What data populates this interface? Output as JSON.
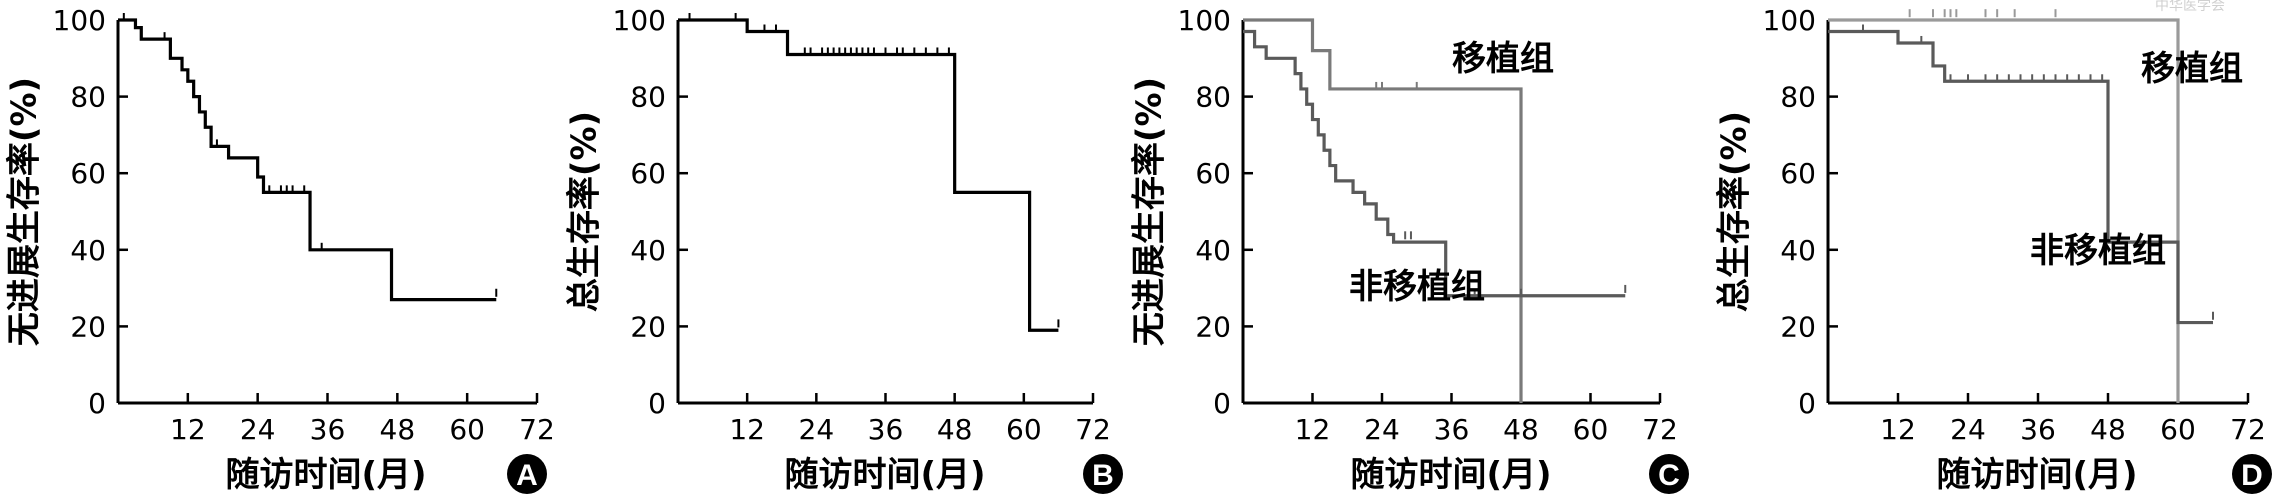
{
  "chart_data": [
    {
      "panel": "A",
      "type": "line",
      "ylabel": "无进展生存率(%)",
      "xlabel": "随访时间(月)",
      "xlim": [
        0,
        72
      ],
      "ylim": [
        0,
        100
      ],
      "x_ticks": [
        "12",
        "24",
        "36",
        "48",
        "60",
        "72"
      ],
      "y_ticks": [
        "0",
        "20",
        "40",
        "60",
        "80",
        "100"
      ],
      "grid": false,
      "series": [
        {
          "color": "#000000",
          "steps": [
            [
              0,
              100
            ],
            [
              3,
              98
            ],
            [
              4,
              95
            ],
            [
              9,
              90
            ],
            [
              11,
              87
            ],
            [
              12,
              84
            ],
            [
              13,
              80
            ],
            [
              14,
              76
            ],
            [
              15,
              72
            ],
            [
              16,
              67
            ],
            [
              19,
              64
            ],
            [
              24,
              59
            ],
            [
              25,
              55
            ],
            [
              33,
              40
            ],
            [
              47,
              27
            ],
            [
              65,
              27
            ]
          ],
          "end": 65,
          "censors": [
            [
              1,
              100
            ],
            [
              8,
              95
            ],
            [
              17,
              67
            ],
            [
              26,
              55
            ],
            [
              28,
              55
            ],
            [
              29,
              55
            ],
            [
              30,
              55
            ],
            [
              32,
              55
            ],
            [
              35,
              40
            ],
            [
              65,
              28
            ]
          ]
        }
      ]
    },
    {
      "panel": "B",
      "type": "line",
      "ylabel": "总生存率(%)",
      "xlabel": "随访时间(月)",
      "xlim": [
        0,
        72
      ],
      "ylim": [
        0,
        100
      ],
      "x_ticks": [
        "12",
        "24",
        "36",
        "48",
        "60",
        "72"
      ],
      "y_ticks": [
        "0",
        "20",
        "40",
        "60",
        "80",
        "100"
      ],
      "grid": false,
      "series": [
        {
          "color": "#000000",
          "steps": [
            [
              0,
              100
            ],
            [
              12,
              97
            ],
            [
              19,
              91
            ],
            [
              48,
              55
            ],
            [
              61,
              19
            ],
            [
              66,
              19
            ]
          ],
          "end": 66,
          "censors": [
            [
              2,
              100
            ],
            [
              10,
              100
            ],
            [
              15,
              97
            ],
            [
              17,
              97
            ],
            [
              22,
              91
            ],
            [
              23,
              91
            ],
            [
              25,
              91
            ],
            [
              26,
              91
            ],
            [
              27,
              91
            ],
            [
              28,
              91
            ],
            [
              29,
              91
            ],
            [
              30,
              91
            ],
            [
              31,
              91
            ],
            [
              32,
              91
            ],
            [
              33,
              91
            ],
            [
              34,
              91
            ],
            [
              36,
              91
            ],
            [
              38,
              91
            ],
            [
              39,
              91
            ],
            [
              41,
              91
            ],
            [
              43,
              91
            ],
            [
              45,
              91
            ],
            [
              47,
              91
            ],
            [
              66,
              20
            ]
          ]
        }
      ]
    },
    {
      "panel": "C",
      "type": "line",
      "ylabel": "无进展生存率(%)",
      "xlabel": "随访时间(月)",
      "xlim": [
        0,
        72
      ],
      "ylim": [
        0,
        100
      ],
      "x_ticks": [
        "12",
        "24",
        "36",
        "48",
        "60",
        "72"
      ],
      "y_ticks": [
        "0",
        "20",
        "40",
        "60",
        "80",
        "100"
      ],
      "grid": false,
      "series": [
        {
          "name": "移植组",
          "color": "#7a7a7a",
          "steps": [
            [
              0,
              100
            ],
            [
              12,
              92
            ],
            [
              15,
              82
            ],
            [
              48,
              0
            ]
          ],
          "end": 48,
          "censors": [
            [
              23,
              82
            ],
            [
              24,
              82
            ],
            [
              30,
              82
            ]
          ]
        },
        {
          "name": "非移植组",
          "color": "#5a5a5a",
          "steps": [
            [
              0,
              97
            ],
            [
              2,
              93
            ],
            [
              4,
              90
            ],
            [
              9,
              86
            ],
            [
              10,
              82
            ],
            [
              11,
              78
            ],
            [
              12,
              74
            ],
            [
              13,
              70
            ],
            [
              14,
              66
            ],
            [
              15,
              62
            ],
            [
              16,
              58
            ],
            [
              19,
              55
            ],
            [
              21,
              52
            ],
            [
              23,
              48
            ],
            [
              25,
              44
            ],
            [
              26,
              42
            ],
            [
              35,
              28
            ],
            [
              66,
              28
            ]
          ],
          "end": 66,
          "censors": [
            [
              28,
              43
            ],
            [
              29,
              43
            ],
            [
              40,
              28
            ],
            [
              48,
              28
            ],
            [
              66,
              29
            ]
          ]
        }
      ]
    },
    {
      "panel": "D",
      "type": "line",
      "ylabel": "总生存率(%)",
      "xlabel": "随访时间(月)",
      "xlim": [
        0,
        72
      ],
      "ylim": [
        0,
        100
      ],
      "x_ticks": [
        "12",
        "24",
        "36",
        "48",
        "60",
        "72"
      ],
      "y_ticks": [
        "0",
        "20",
        "40",
        "60",
        "80",
        "100"
      ],
      "grid": false,
      "series": [
        {
          "name": "移植组",
          "color": "#9a9a9a",
          "steps": [
            [
              0,
              100
            ],
            [
              60,
              0
            ]
          ],
          "end": 60,
          "censors": [
            [
              14,
              101
            ],
            [
              18,
              101
            ],
            [
              20,
              101
            ],
            [
              21,
              101
            ],
            [
              22,
              101
            ],
            [
              27,
              101
            ],
            [
              29,
              101
            ],
            [
              32,
              101
            ],
            [
              39,
              101
            ]
          ]
        },
        {
          "name": "非移植组",
          "color": "#5a5a5a",
          "steps": [
            [
              0,
              97
            ],
            [
              12,
              94
            ],
            [
              18,
              88
            ],
            [
              20,
              84
            ],
            [
              48,
              42
            ],
            [
              60,
              21
            ],
            [
              66,
              21
            ]
          ],
          "end": 66,
          "censors": [
            [
              6,
              97
            ],
            [
              16,
              94
            ],
            [
              21,
              84
            ],
            [
              24,
              84
            ],
            [
              27,
              84
            ],
            [
              29,
              84
            ],
            [
              31,
              84
            ],
            [
              33,
              84
            ],
            [
              35,
              84
            ],
            [
              37,
              84
            ],
            [
              39,
              84
            ],
            [
              41,
              84
            ],
            [
              43,
              84
            ],
            [
              45,
              84
            ],
            [
              47,
              84
            ],
            [
              66,
              22
            ]
          ]
        }
      ]
    }
  ],
  "figure": {
    "badges": [
      "A",
      "B",
      "C",
      "D"
    ],
    "watermark": "中华医学会"
  }
}
